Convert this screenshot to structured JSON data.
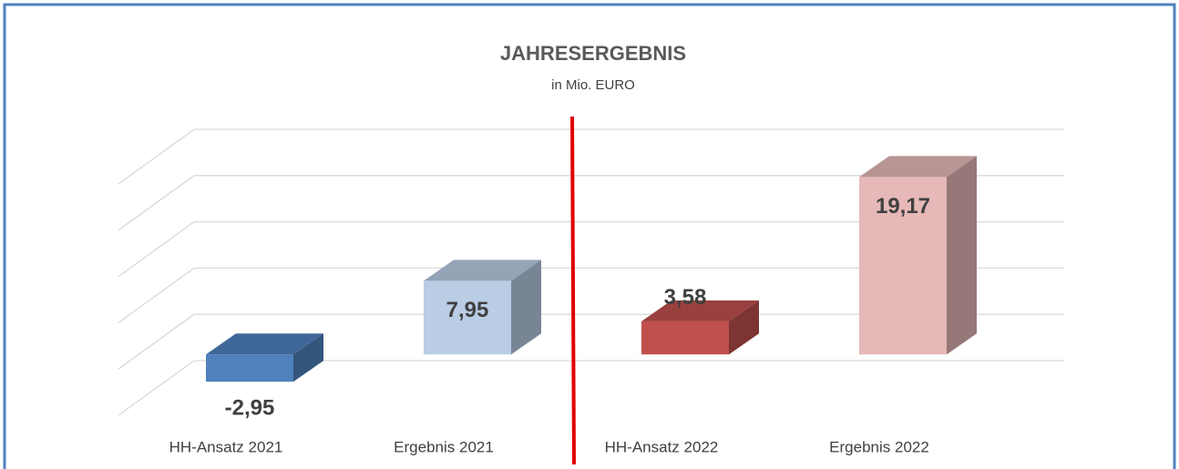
{
  "chart_data": {
    "type": "bar3d",
    "title": "JAHRESERGEBNIS",
    "subtitle": "in Mio. EURO",
    "categories": [
      "HH-Ansatz 2021",
      "Ergebnis 2021",
      "HH-Ansatz 2022",
      "Ergebnis 2022"
    ],
    "values": [
      -2.95,
      7.95,
      3.58,
      19.17
    ],
    "value_labels": [
      "-2,95",
      "7,95",
      "3,58",
      "19,17"
    ],
    "colors": [
      "#4f81bd",
      "#b9cde5",
      "#c0504d",
      "#e6b9b8"
    ],
    "ylim": [
      -5,
      20
    ],
    "yticks": [
      -5,
      0,
      5,
      10,
      15,
      20
    ],
    "grid": true
  }
}
